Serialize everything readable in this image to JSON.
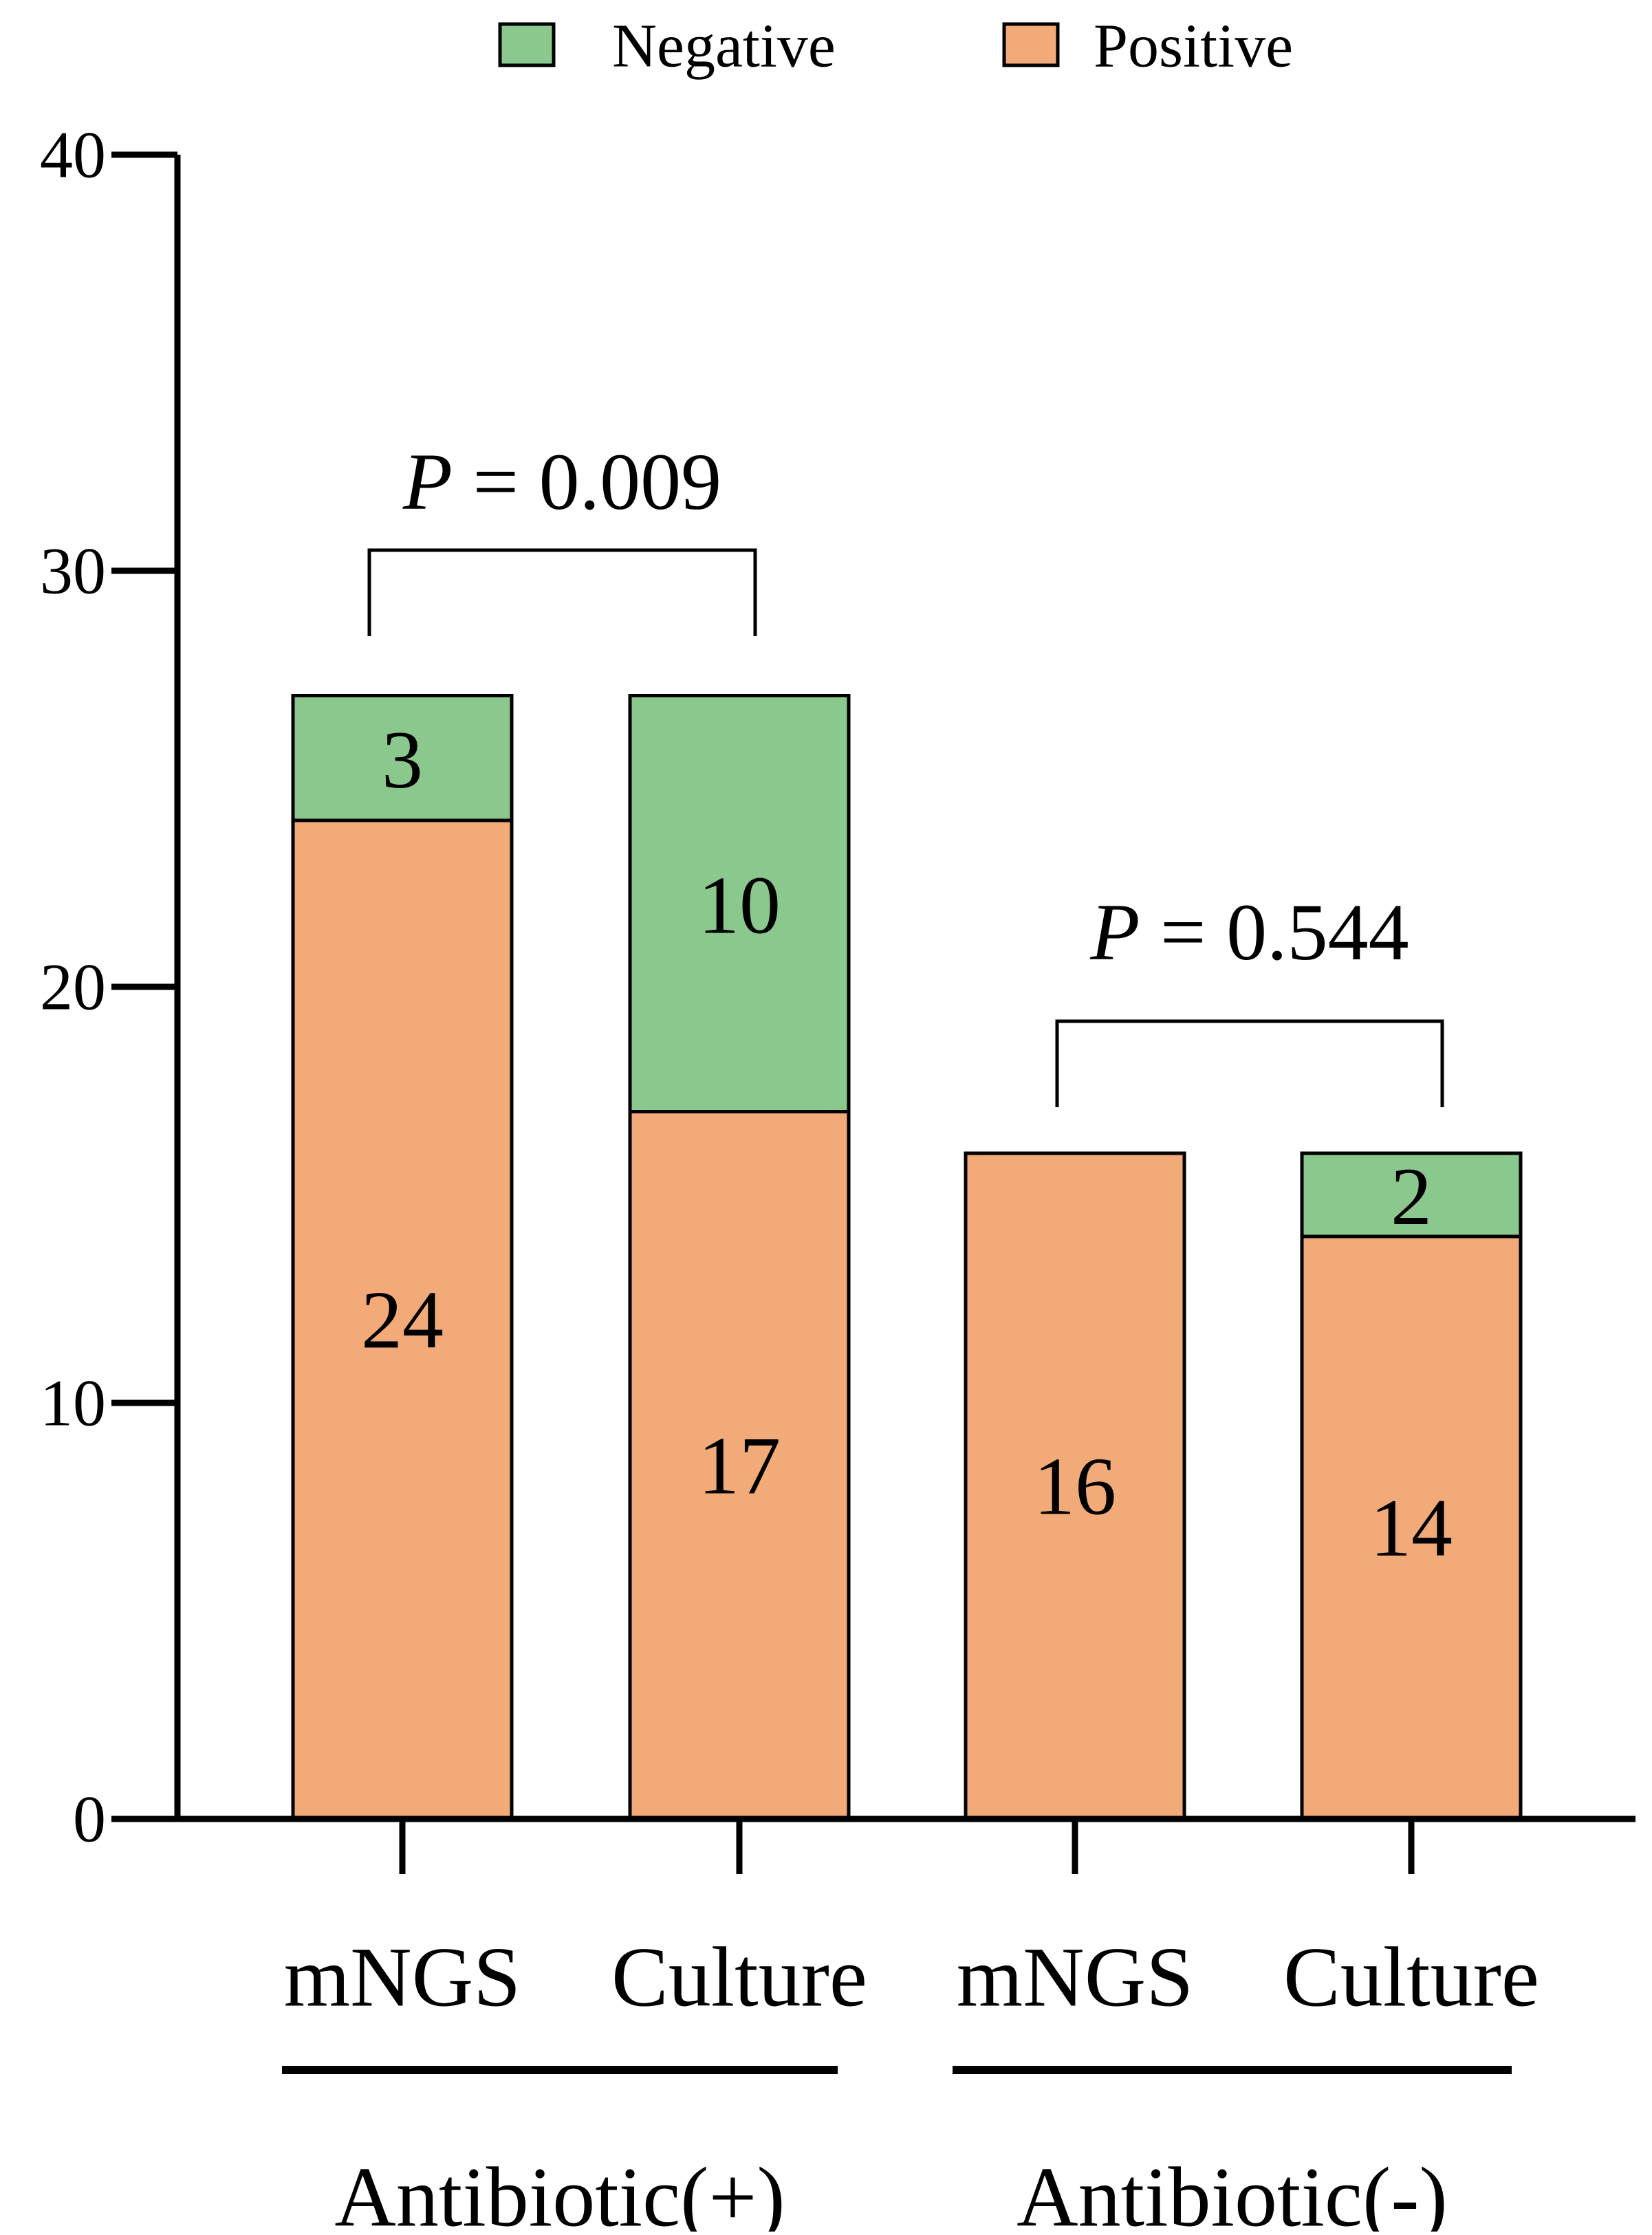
{
  "chart_data": {
    "type": "bar",
    "stacked": true,
    "categories": [
      "mNGS",
      "Culture",
      "mNGS",
      "Culture"
    ],
    "groups": [
      {
        "label": "Antibiotic(+)",
        "category_indices": [
          0,
          1
        ]
      },
      {
        "label": "Antibiotic(-)",
        "category_indices": [
          2,
          3
        ]
      }
    ],
    "series": [
      {
        "name": "Positive",
        "values": [
          24,
          17,
          16,
          14
        ],
        "color": "#F2AB78"
      },
      {
        "name": "Negative",
        "values": [
          3,
          10,
          0,
          2
        ],
        "color": "#8AC88E"
      }
    ],
    "data_labels": {
      "Positive": [
        "24",
        "17",
        "16",
        "14"
      ],
      "Negative": [
        "3",
        "10",
        "",
        "2"
      ]
    },
    "ylim": [
      0,
      40
    ],
    "yticks": [
      0,
      10,
      20,
      30,
      40
    ],
    "ytick_labels": [
      "0",
      "10",
      "20",
      "30",
      "40"
    ],
    "legend_position": "top",
    "grid": false,
    "annotations": [
      {
        "type": "bracket",
        "between": [
          0,
          1
        ],
        "p_symbol": "P",
        "p_text": " = 0.009"
      },
      {
        "type": "bracket",
        "between": [
          2,
          3
        ],
        "p_symbol": "P",
        "p_text": " = 0.544"
      }
    ]
  }
}
